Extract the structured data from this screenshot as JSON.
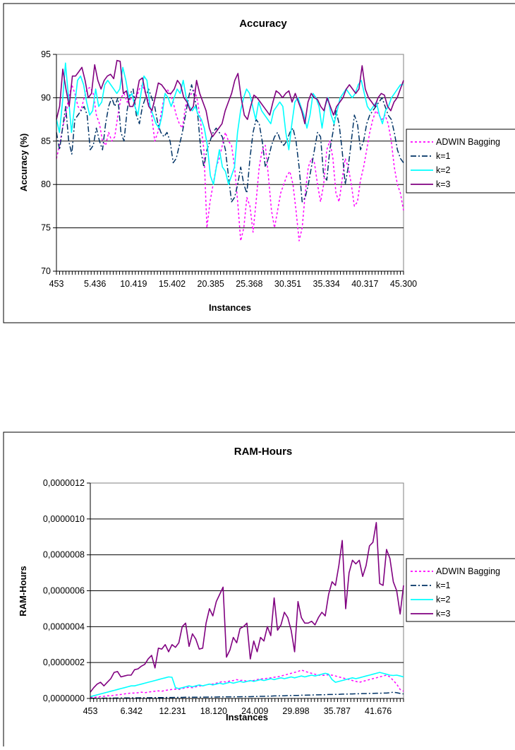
{
  "chart_data": [
    {
      "type": "line",
      "title": "Accuracy",
      "xlabel": "Instances",
      "ylabel": "Accuracy (%)",
      "ylim": [
        70,
        95
      ],
      "yticks": [
        "70",
        "75",
        "80",
        "85",
        "90",
        "95"
      ],
      "xticks": [
        "453",
        "5.436",
        "10.419",
        "15.402",
        "20.385",
        "25.368",
        "30.351",
        "35.334",
        "40.317",
        "45.300"
      ],
      "xrange": [
        453,
        45300
      ],
      "grid": true,
      "legend_position": "right",
      "series": [
        {
          "name": "ADWIN Bagging",
          "color": "#ff00ff",
          "dash": "dot",
          "values": [
            83.0,
            84.5,
            86.5,
            88.0,
            90.0,
            91.5,
            90.5,
            89.0,
            88.5,
            90.0,
            91.0,
            91.2,
            90.5,
            88.0,
            87.0,
            85.0,
            84.5,
            86.0,
            85.0,
            85.5,
            88.0,
            90.0,
            90.5,
            89.5,
            89.8,
            90.2,
            90.0,
            91.0,
            91.5,
            90.5,
            89.5,
            88.0,
            85.0,
            86.0,
            88.0,
            90.0,
            91.0,
            90.5,
            89.5,
            88.0,
            87.0,
            86.5,
            89.0,
            90.0,
            90.5,
            91.0,
            89.5,
            87.0,
            84.0,
            75.0,
            78.0,
            80.0,
            82.0,
            83.0,
            84.5,
            86.0,
            85.0,
            84.5,
            82.0,
            78.0,
            73.5,
            75.0,
            78.5,
            77.5,
            74.5,
            78.0,
            82.0,
            84.0,
            84.5,
            81.0,
            77.0,
            75.0,
            77.0,
            79.0,
            80.0,
            81.0,
            81.5,
            80.0,
            77.0,
            73.5,
            75.0,
            79.0,
            82.0,
            83.0,
            82.5,
            80.0,
            78.0,
            80.0,
            84.0,
            85.0,
            83.0,
            79.0,
            78.0,
            80.5,
            83.0,
            82.0,
            80.0,
            77.5,
            78.0,
            80.5,
            82.0,
            84.0,
            86.0,
            87.5,
            88.5,
            88.0,
            87.5,
            88.0,
            87.0,
            85.0,
            82.0,
            80.0,
            79.0,
            77.0
          ]
        },
        {
          "name": "k=1",
          "color": "#003366",
          "dash": "dashdot",
          "values": [
            86.0,
            84.0,
            86.5,
            89.0,
            85.0,
            83.5,
            87.5,
            88.0,
            88.5,
            89.0,
            88.0,
            84.0,
            84.5,
            86.5,
            85.0,
            84.0,
            87.0,
            89.0,
            90.0,
            89.0,
            90.0,
            86.0,
            85.0,
            88.5,
            90.5,
            91.0,
            88.0,
            87.0,
            89.0,
            90.0,
            91.0,
            90.0,
            89.0,
            87.0,
            86.0,
            85.5,
            86.0,
            85.0,
            82.5,
            83.0,
            84.5,
            86.0,
            88.0,
            90.0,
            91.5,
            90.0,
            88.0,
            84.0,
            82.0,
            84.0,
            85.0,
            86.0,
            86.5,
            86.0,
            85.5,
            84.0,
            81.0,
            78.0,
            78.5,
            80.0,
            82.0,
            80.0,
            79.0,
            83.0,
            86.0,
            87.5,
            87.0,
            85.0,
            82.0,
            83.0,
            84.5,
            85.5,
            86.0,
            85.0,
            84.5,
            85.0,
            86.0,
            86.5,
            85.0,
            82.0,
            78.0,
            78.5,
            80.0,
            82.0,
            84.0,
            86.0,
            85.5,
            81.0,
            80.5,
            84.0,
            86.0,
            88.5,
            87.0,
            84.0,
            80.0,
            82.0,
            85.0,
            88.0,
            87.0,
            84.0,
            85.0,
            87.0,
            88.0,
            88.5,
            89.0,
            89.5,
            90.0,
            89.0,
            88.0,
            87.5,
            86.0,
            84.0,
            83.0,
            82.5
          ]
        },
        {
          "name": "k=2",
          "color": "#00ffff",
          "dash": "solid",
          "values": [
            87.5,
            86.0,
            89.5,
            94.0,
            90.0,
            86.0,
            89.0,
            92.0,
            92.5,
            91.5,
            89.5,
            88.0,
            88.5,
            91.0,
            89.0,
            89.5,
            91.5,
            92.0,
            91.5,
            91.0,
            90.5,
            91.0,
            93.5,
            92.0,
            90.0,
            90.5,
            89.0,
            88.0,
            90.5,
            92.5,
            92.0,
            89.0,
            88.0,
            87.0,
            86.5,
            88.0,
            90.5,
            90.0,
            89.0,
            90.0,
            91.0,
            90.5,
            92.0,
            90.0,
            89.0,
            88.5,
            89.0,
            88.0,
            87.5,
            86.5,
            84.5,
            81.0,
            80.0,
            82.0,
            84.0,
            82.0,
            81.5,
            80.0,
            81.0,
            82.0,
            86.0,
            88.5,
            90.0,
            91.0,
            90.5,
            89.0,
            87.5,
            89.5,
            88.5,
            88.0,
            87.5,
            87.0,
            88.5,
            89.0,
            89.5,
            89.0,
            86.0,
            84.0,
            87.0,
            89.5,
            90.0,
            89.0,
            88.0,
            86.5,
            88.0,
            90.5,
            90.0,
            89.0,
            86.5,
            89.0,
            90.0,
            88.0,
            87.0,
            88.5,
            90.0,
            90.5,
            91.0,
            90.5,
            90.0,
            90.5,
            91.5,
            92.0,
            90.5,
            89.0,
            88.5,
            89.0,
            89.5,
            88.0,
            87.0,
            88.5,
            89.0,
            90.0,
            90.5,
            91.0,
            91.5,
            91.5
          ]
        },
        {
          "name": "k=3",
          "color": "#800080",
          "dash": "solid",
          "values": [
            87.5,
            89.0,
            93.3,
            91.0,
            89.0,
            92.5,
            92.5,
            93.0,
            93.5,
            92.0,
            90.0,
            90.5,
            93.8,
            92.0,
            91.0,
            92.0,
            92.5,
            92.7,
            92.2,
            94.3,
            94.2,
            90.5,
            90.8,
            89.0,
            89.0,
            90.0,
            92.0,
            92.3,
            90.5,
            89.0,
            88.5,
            90.0,
            91.7,
            91.5,
            91.0,
            90.5,
            90.5,
            91.0,
            92.0,
            91.5,
            90.0,
            89.5,
            88.5,
            89.0,
            92.0,
            90.5,
            89.5,
            88.5,
            86.5,
            85.5,
            86.0,
            86.5,
            87.0,
            88.5,
            89.5,
            90.5,
            92.0,
            92.8,
            90.0,
            88.0,
            87.5,
            89.0,
            90.3,
            90.0,
            89.5,
            89.0,
            88.5,
            88.0,
            89.5,
            90.8,
            90.5,
            90.0,
            90.5,
            90.8,
            89.5,
            90.5,
            89.5,
            88.5,
            87.0,
            89.5,
            90.5,
            90.0,
            89.8,
            89.0,
            88.5,
            90.0,
            89.0,
            88.0,
            89.0,
            89.5,
            90.0,
            91.0,
            91.5,
            91.0,
            90.5,
            91.0,
            93.7,
            91.0,
            90.0,
            89.5,
            89.0,
            90.0,
            90.5,
            90.3,
            89.0,
            88.5,
            89.5,
            90.0,
            91.0,
            92.0
          ]
        }
      ]
    },
    {
      "type": "line",
      "title": "RAM-Hours",
      "xlabel": "Instances",
      "ylabel": "RAM-Hours",
      "ylim": [
        0,
        1.2e-06
      ],
      "yticks": [
        "0,0000000",
        "0,0000002",
        "0,0000004",
        "0,0000006",
        "0,0000008",
        "0,0000010",
        "0,0000012"
      ],
      "xticks": [
        "453",
        "6.342",
        "12.231",
        "18.120",
        "24.009",
        "29.898",
        "35.787",
        "41.676"
      ],
      "xrange": [
        453,
        45300
      ],
      "grid": true,
      "legend_position": "right",
      "series": [
        {
          "name": "ADWIN Bagging",
          "color": "#ff00ff",
          "dash": "dot",
          "values": [
            5e-09,
            6e-09,
            8e-09,
            1e-08,
            1.2e-08,
            1.5e-08,
            1.5e-08,
            1.8e-08,
            2e-08,
            2.2e-08,
            2.5e-08,
            2.8e-08,
            3e-08,
            3e-08,
            3.2e-08,
            3.5e-08,
            3.2e-08,
            3.5e-08,
            3.8e-08,
            4e-08,
            4.2e-08,
            4e-08,
            4.5e-08,
            4.8e-08,
            5e-08,
            5.2e-08,
            5e-08,
            5.5e-08,
            6e-08,
            6.2e-08,
            6e-08,
            6.5e-08,
            7e-08,
            7e-08,
            7.5e-08,
            8e-08,
            8e-08,
            8.5e-08,
            9e-08,
            9.5e-08,
            9e-08,
            9.8e-08,
            1e-07,
            1.05e-07,
            1e-07,
            1.02e-07,
            9.5e-08,
            9.8e-08,
            1e-07,
            1.05e-07,
            1.08e-07,
            1.1e-07,
            1.12e-07,
            1.15e-07,
            1.18e-07,
            1.2e-07,
            1.25e-07,
            1.3e-07,
            1.35e-07,
            1.4e-07,
            1.45e-07,
            1.5e-07,
            1.58e-07,
            1.52e-07,
            1.45e-07,
            1.4e-07,
            1.35e-07,
            1.3e-07,
            1.28e-07,
            1.3e-07,
            1.32e-07,
            1.3e-07,
            1.25e-07,
            1.2e-07,
            1.15e-07,
            1.1e-07,
            1.05e-07,
            1e-07,
            9.5e-08,
            9e-08,
            9.5e-08,
            1e-07,
            1.05e-07,
            1.1e-07,
            1.15e-07,
            1.2e-07,
            1.25e-07,
            1.3e-07,
            1.2e-07,
            1e-07,
            8e-08,
            5e-08,
            4e-08
          ]
        },
        {
          "name": "k=1",
          "color": "#003366",
          "dash": "dashdot",
          "values": [
            1e-09,
            1e-09,
            1e-09,
            1.5e-09,
            1.5e-09,
            2e-09,
            2e-09,
            2e-09,
            2.5e-09,
            2.5e-09,
            3e-09,
            3e-09,
            3e-09,
            3.5e-09,
            3.5e-09,
            4e-09,
            4e-09,
            4e-09,
            4.5e-09,
            4.5e-09,
            5e-09,
            5e-09,
            5e-09,
            5.5e-09,
            5.5e-09,
            6e-09,
            6e-09,
            6e-09,
            6.5e-09,
            6.5e-09,
            7e-09,
            7e-09,
            7e-09,
            7.5e-09,
            7.5e-09,
            8e-09,
            8e-09,
            8e-09,
            8.5e-09,
            8.5e-09,
            9e-09,
            9e-09,
            9e-09,
            9.5e-09,
            9.5e-09,
            1e-08,
            1e-08,
            1e-08,
            1.1e-08,
            1.1e-08,
            1.2e-08,
            1.2e-08,
            1.3e-08,
            1.3e-08,
            1.4e-08,
            1.4e-08,
            1.5e-08,
            1.5e-08,
            1.6e-08,
            1.6e-08,
            1.7e-08,
            1.7e-08,
            1.8e-08,
            1.8e-08,
            1.9e-08,
            1.9e-08,
            2e-08,
            2e-08,
            2.1e-08,
            2.1e-08,
            2.2e-08,
            2.2e-08,
            2.3e-08,
            2.3e-08,
            2.4e-08,
            2.4e-08,
            2.5e-08,
            2.5e-08,
            2.6e-08,
            2.6e-08,
            2.7e-08,
            2.7e-08,
            2.8e-08,
            2.8e-08,
            2.9e-08,
            2.9e-08,
            3e-08,
            3e-08,
            3.2e-08,
            3.5e-08,
            3.2e-08,
            2.8e-08,
            2.5e-08
          ]
        },
        {
          "name": "k=2",
          "color": "#00ffff",
          "dash": "solid",
          "values": [
            1e-08,
            1.5e-08,
            2e-08,
            2.5e-08,
            3e-08,
            3.5e-08,
            4e-08,
            4.5e-08,
            5e-08,
            5.5e-08,
            6e-08,
            6.5e-08,
            7e-08,
            7e-08,
            7.5e-08,
            8e-08,
            8.5e-08,
            9e-08,
            9.5e-08,
            1e-07,
            1.05e-07,
            1.1e-07,
            1.15e-07,
            1.2e-07,
            1.18e-07,
            6e-08,
            5.5e-08,
            6e-08,
            6.5e-08,
            7e-08,
            6.5e-08,
            7e-08,
            7.5e-08,
            7e-08,
            7.5e-08,
            8e-08,
            7.5e-08,
            8e-08,
            8.5e-08,
            8e-08,
            8.5e-08,
            9e-08,
            8.5e-08,
            9e-08,
            9.5e-08,
            9e-08,
            9.5e-08,
            1e-07,
            9.5e-08,
            1e-07,
            1.05e-07,
            1e-07,
            1.05e-07,
            1.1e-07,
            1.05e-07,
            1.1e-07,
            1.15e-07,
            1.1e-07,
            1.15e-07,
            1.2e-07,
            1.15e-07,
            1.2e-07,
            1.25e-07,
            1.2e-07,
            1.25e-07,
            1.3e-07,
            1.25e-07,
            1.3e-07,
            1.35e-07,
            1.4e-07,
            1.35e-07,
            1.05e-07,
            9e-08,
            9.5e-08,
            1e-07,
            1.05e-07,
            1.1e-07,
            1.15e-07,
            1.1e-07,
            1.15e-07,
            1.2e-07,
            1.25e-07,
            1.3e-07,
            1.35e-07,
            1.4e-07,
            1.45e-07,
            1.4e-07,
            1.35e-07,
            1.3e-07,
            1.28e-07,
            1.3e-07,
            1.25e-07,
            1.2e-07
          ]
        },
        {
          "name": "k=3",
          "color": "#800080",
          "dash": "solid",
          "values": [
            3.5e-08,
            6e-08,
            8e-08,
            9e-08,
            7e-08,
            9e-08,
            1.1e-07,
            1.45e-07,
            1.5e-07,
            1.2e-07,
            1.25e-07,
            1.3e-07,
            1.3e-07,
            1.6e-07,
            1.65e-07,
            1.8e-07,
            1.9e-07,
            2.2e-07,
            2.4e-07,
            1.7e-07,
            2.8e-07,
            2.75e-07,
            3e-07,
            2.6e-07,
            3e-07,
            2.85e-07,
            3.1e-07,
            4e-07,
            4.2e-07,
            2.9e-07,
            3.6e-07,
            3.3e-07,
            2.75e-07,
            2.8e-07,
            4.2e-07,
            5e-07,
            4.6e-07,
            5.4e-07,
            5.8e-07,
            6.2e-07,
            2.3e-07,
            2.7e-07,
            3.4e-07,
            3.1e-07,
            3.9e-07,
            4e-07,
            4.2e-07,
            2.2e-07,
            3.2e-07,
            2.6e-07,
            3.4e-07,
            3.2e-07,
            4e-07,
            3.5e-07,
            5.6e-07,
            3.8e-07,
            4.1e-07,
            4.8e-07,
            4.5e-07,
            3.8e-07,
            2.6e-07,
            5.4e-07,
            4.5e-07,
            4.2e-07,
            4.2e-07,
            4.3e-07,
            4.1e-07,
            4.5e-07,
            4.8e-07,
            4.6e-07,
            5.8e-07,
            6.5e-07,
            6.3e-07,
            7.4e-07,
            8.8e-07,
            5e-07,
            7e-07,
            7.7e-07,
            7.5e-07,
            7.7e-07,
            6.8e-07,
            7.4e-07,
            8.5e-07,
            8.7e-07,
            9.8e-07,
            6.4e-07,
            6.3e-07,
            8.3e-07,
            7.8e-07,
            6.5e-07,
            6e-07,
            4.7e-07,
            6.3e-07
          ]
        }
      ]
    }
  ]
}
